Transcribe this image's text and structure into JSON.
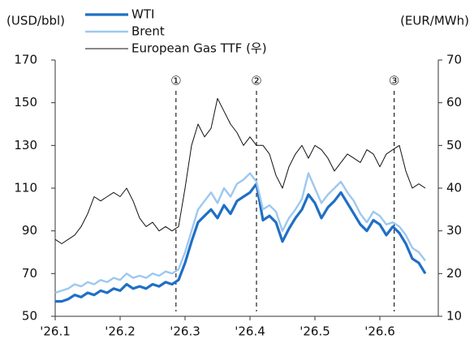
{
  "chart_data": {
    "type": "line",
    "ylabel": "(USD/bbl)",
    "y2label": "(EUR/MWh)",
    "x": [
      1.0,
      1.1,
      1.2,
      1.3,
      1.4,
      1.5,
      1.6,
      1.7,
      1.8,
      1.9,
      2.0,
      2.1,
      2.2,
      2.3,
      2.4,
      2.5,
      2.6,
      2.7,
      2.8,
      2.9,
      3.0,
      3.1,
      3.2,
      3.3,
      3.4,
      3.5,
      3.6,
      3.7,
      3.8,
      3.9,
      4.0,
      4.1,
      4.2,
      4.3,
      4.4,
      4.5,
      4.6,
      4.7,
      4.8,
      4.9,
      5.0,
      5.1,
      5.2,
      5.3,
      5.4,
      5.5,
      5.6,
      5.7,
      5.8,
      5.9,
      6.0,
      6.1,
      6.2,
      6.3,
      6.4,
      6.5,
      6.6,
      6.7
    ],
    "series": [
      {
        "name": "WTI",
        "color": "#1f6fc5",
        "width": 3.2,
        "values": [
          57,
          57,
          58,
          60,
          59,
          61,
          60,
          62,
          61,
          63,
          62,
          65,
          63,
          64,
          63,
          65,
          64,
          66,
          65,
          67,
          75,
          85,
          94,
          97,
          100,
          96,
          102,
          98,
          104,
          106,
          108,
          112,
          95,
          97,
          94,
          85,
          91,
          96,
          100,
          107,
          103,
          96,
          101,
          104,
          108,
          103,
          98,
          93,
          90,
          95,
          93,
          88,
          92,
          89,
          84,
          77,
          75,
          70
        ]
      },
      {
        "name": "Brent",
        "color": "#9dc8f0",
        "width": 2.4,
        "values": [
          61,
          62,
          63,
          65,
          64,
          66,
          65,
          67,
          66,
          68,
          67,
          70,
          68,
          69,
          68,
          70,
          69,
          71,
          70,
          72,
          80,
          90,
          100,
          104,
          108,
          103,
          110,
          106,
          112,
          114,
          117,
          113,
          100,
          102,
          99,
          90,
          96,
          100,
          105,
          117,
          110,
          103,
          107,
          110,
          113,
          108,
          104,
          98,
          94,
          99,
          97,
          93,
          94,
          92,
          88,
          82,
          80,
          76
        ]
      },
      {
        "name": "European Gas TTF (우)",
        "color": "#111111",
        "width": 1,
        "axis": "y2",
        "values": [
          28,
          27,
          28,
          29,
          31,
          34,
          38,
          37,
          38,
          39,
          38,
          40,
          37,
          33,
          31,
          32,
          30,
          31,
          30,
          31,
          40,
          50,
          55,
          52,
          54,
          61,
          58,
          55,
          53,
          50,
          52,
          50,
          50,
          48,
          43,
          40,
          45,
          48,
          50,
          47,
          50,
          49,
          47,
          44,
          46,
          48,
          47,
          46,
          49,
          48,
          45,
          48,
          49,
          50,
          44,
          40,
          41,
          40
        ]
      }
    ],
    "xlim": [
      1,
      6.9
    ],
    "xticks": [
      {
        "value": 1,
        "label": "'26.1"
      },
      {
        "value": 2,
        "label": "'26.2"
      },
      {
        "value": 3,
        "label": "'26.3"
      },
      {
        "value": 4,
        "label": "'26.4"
      },
      {
        "value": 5,
        "label": "'26.5"
      },
      {
        "value": 6,
        "label": "'26.6"
      }
    ],
    "ylim": [
      50,
      170
    ],
    "yticks": [
      50,
      70,
      90,
      110,
      130,
      150,
      170
    ],
    "y2lim": [
      10,
      70
    ],
    "y2ticks": [
      10,
      20,
      30,
      40,
      50,
      60,
      70
    ],
    "annotations": [
      {
        "x": 2.86,
        "label": "①"
      },
      {
        "x": 4.1,
        "label": "②"
      },
      {
        "x": 6.22,
        "label": "③"
      }
    ],
    "legend": "top"
  }
}
